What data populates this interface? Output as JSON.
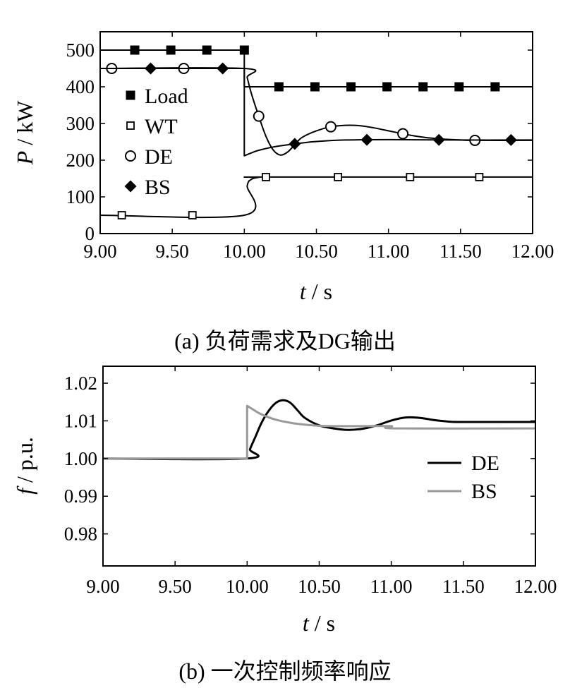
{
  "chart_data": [
    {
      "type": "line",
      "xlabel_var": "t",
      "xlabel_unit": " / s",
      "ylabel_var": "P",
      "ylabel_unit": " / kW",
      "xlim": [
        9.0,
        12.0
      ],
      "ylim": [
        0,
        550
      ],
      "xticks": [
        9.0,
        9.5,
        10.0,
        10.5,
        11.0,
        11.5,
        12.0
      ],
      "xtick_labels": [
        "9.00",
        "9.50",
        "10.00",
        "10.50",
        "11.00",
        "11.50",
        "12.00"
      ],
      "yticks": [
        0,
        100,
        200,
        300,
        400,
        500
      ],
      "ytick_labels": [
        "0",
        "100",
        "200",
        "300",
        "400",
        "500"
      ],
      "caption": "(a)  负荷需求及DG输出",
      "legend_position": "left",
      "series": [
        {
          "name": "Load",
          "marker": "filled-square",
          "x": [
            9.0,
            10.0,
            10.0,
            12.0
          ],
          "y": [
            500,
            500,
            400,
            400
          ],
          "marker_x": [
            9.24,
            9.49,
            9.74,
            10.0,
            10.24,
            10.49,
            10.74,
            10.99,
            11.24,
            11.49,
            11.74
          ]
        },
        {
          "name": "WT",
          "marker": "open-square",
          "x": [
            9.0,
            10.0,
            10.02,
            10.05,
            10.1,
            10.15,
            12.0
          ],
          "y": [
            50,
            50,
            130,
            148,
            153,
            154,
            154
          ],
          "marker_x": [
            9.15,
            9.64,
            10.15,
            10.65,
            11.15,
            11.63
          ]
        },
        {
          "name": "DE",
          "marker": "open-circle",
          "x": [
            9.0,
            10.0,
            10.02,
            10.05,
            10.1,
            10.15,
            10.2,
            10.25,
            10.3,
            10.35,
            10.4,
            10.5,
            10.6,
            10.7,
            10.8,
            10.9,
            11.0,
            11.1,
            11.2,
            11.3,
            11.4,
            11.5,
            11.6,
            12.0
          ],
          "y": [
            450,
            450,
            425,
            380,
            320,
            265,
            228,
            214,
            222,
            242,
            262,
            280,
            291,
            295,
            294,
            288,
            280,
            272,
            265,
            260,
            257,
            255,
            254,
            254
          ],
          "marker_x": [
            9.08,
            9.58,
            10.1,
            10.6,
            11.1,
            11.6
          ]
        },
        {
          "name": "BS",
          "marker": "filled-diamond",
          "x": [
            9.0,
            10.0,
            10.0,
            10.05,
            10.1,
            10.2,
            10.3,
            10.4,
            10.5,
            10.7,
            11.0,
            11.5,
            12.0
          ],
          "y": [
            450,
            450,
            212,
            220,
            227,
            236,
            242,
            247,
            251,
            255,
            256,
            255,
            255
          ],
          "marker_x": [
            9.35,
            9.85,
            10.35,
            10.85,
            11.35,
            11.85
          ]
        }
      ]
    },
    {
      "type": "line",
      "xlabel_var": "t",
      "xlabel_unit": " / s",
      "ylabel_var": "f",
      "ylabel_unit": " / p.u.",
      "xlim": [
        9.0,
        12.0
      ],
      "ylim": [
        0.9715,
        1.0245
      ],
      "xticks": [
        9.0,
        9.5,
        10.0,
        10.5,
        11.0,
        11.5,
        12.0
      ],
      "xtick_labels": [
        "9.00",
        "9.50",
        "10.00",
        "10.50",
        "11.00",
        "11.50",
        "12.00"
      ],
      "yticks": [
        0.98,
        0.99,
        1.0,
        1.01,
        1.02
      ],
      "ytick_labels": [
        "0.98",
        "0.99",
        "1.00",
        "1.01",
        "1.02"
      ],
      "caption": "(b)  一次控制频率响应",
      "legend_position": "right",
      "series": [
        {
          "name": "DE",
          "color": "#000000",
          "x": [
            9.0,
            10.0,
            10.02,
            10.06,
            10.1,
            10.15,
            10.2,
            10.25,
            10.3,
            10.35,
            10.4,
            10.5,
            10.6,
            10.7,
            10.8,
            10.9,
            11.0,
            11.1,
            11.2,
            11.3,
            11.4,
            11.5,
            12.0
          ],
          "y": [
            1.0,
            1.0,
            1.0025,
            1.006,
            1.0095,
            1.0127,
            1.0148,
            1.0155,
            1.0148,
            1.0128,
            1.0108,
            1.0088,
            1.008,
            1.0076,
            1.0079,
            1.0088,
            1.0101,
            1.0109,
            1.0108,
            1.0102,
            1.0098,
            1.0097,
            1.0097
          ]
        },
        {
          "name": "BS",
          "color": "#999999",
          "x": [
            9.0,
            10.0,
            10.0,
            10.05,
            10.1,
            10.2,
            10.3,
            10.4,
            10.5,
            10.6,
            10.8,
            11.0,
            11.03,
            12.0
          ],
          "y": [
            1.0,
            1.0,
            1.014,
            1.0128,
            1.0117,
            1.0103,
            1.0095,
            1.009,
            1.0087,
            1.0086,
            1.0086,
            1.0086,
            1.008,
            1.008
          ]
        }
      ]
    }
  ]
}
